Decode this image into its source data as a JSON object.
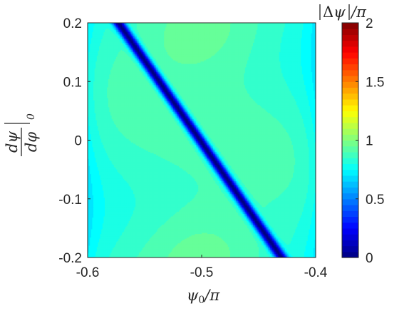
{
  "chart_data": {
    "type": "heatmap",
    "x": {
      "label": "ψ0/π",
      "range": [
        -0.6,
        -0.4
      ],
      "ticks": [
        -0.6,
        -0.5,
        -0.4
      ],
      "tick_labels": [
        "-0.6",
        "-0.5",
        "-0.4"
      ]
    },
    "y": {
      "label": "dψ/dφ|0",
      "range": [
        -0.2,
        0.2
      ],
      "ticks": [
        -0.2,
        -0.1,
        0,
        0.1,
        0.2
      ],
      "tick_labels": [
        "-0.2",
        "-0.1",
        "0",
        "0.1",
        "0.2"
      ]
    },
    "z": {
      "label": "|Δψ|/π",
      "range": [
        0,
        2
      ],
      "colormap": "jet",
      "colorbar_ticks": [
        0,
        0.5,
        1,
        1.5,
        2
      ],
      "colorbar_tick_labels": [
        "0",
        "0.5",
        "1",
        "1.5",
        "2"
      ]
    },
    "features": {
      "minimum_ridge": {
        "z": 0,
        "from": [
          -0.573,
          0.2
        ],
        "to": [
          -0.43,
          -0.2
        ]
      },
      "background_level": 0.85,
      "peak_regions": [
        {
          "center": [
            -0.5,
            0.2
          ],
          "z": 1.0
        },
        {
          "center": [
            -0.5,
            -0.2
          ],
          "z": 1.0
        }
      ]
    }
  }
}
